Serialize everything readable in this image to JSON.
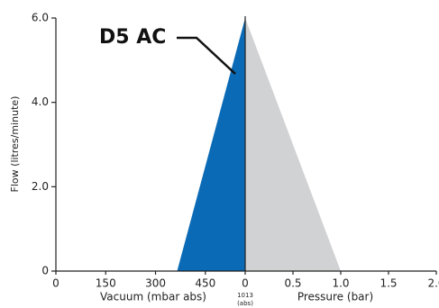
{
  "chart_data": {
    "type": "area",
    "annotation": "D5 AC",
    "ylabel": "Flow (litres/minute)",
    "xlabel_left": "Vacuum (mbar abs)",
    "xlabel_right": "Pressure (bar)",
    "center_label": [
      "1013",
      "(abs)"
    ],
    "ylim": [
      0,
      6
    ],
    "yticks": [
      0,
      {
        "value": 2,
        "label": "2.0"
      },
      {
        "value": 4,
        "label": "4.0"
      },
      {
        "value": 6,
        "label": "6.0"
      }
    ],
    "xlim_vacuum": [
      0,
      570
    ],
    "xticks_vacuum": [
      0,
      150,
      300,
      450
    ],
    "xlim_pressure": [
      0,
      2
    ],
    "xticks_pressure": [
      0,
      0.5,
      {
        "value": 1,
        "label": "1.0"
      },
      1.5,
      {
        "value": 2,
        "label": "2.0"
      }
    ],
    "series": [
      {
        "name": "Vacuum",
        "color": "#0a6ab5",
        "axis": "vacuum",
        "x": [
          365,
          570
        ],
        "values": [
          0,
          6
        ]
      },
      {
        "name": "Pressure",
        "color": "#d1d2d4",
        "axis": "pressure",
        "x": [
          0,
          1
        ],
        "values": [
          6,
          0
        ]
      }
    ]
  }
}
